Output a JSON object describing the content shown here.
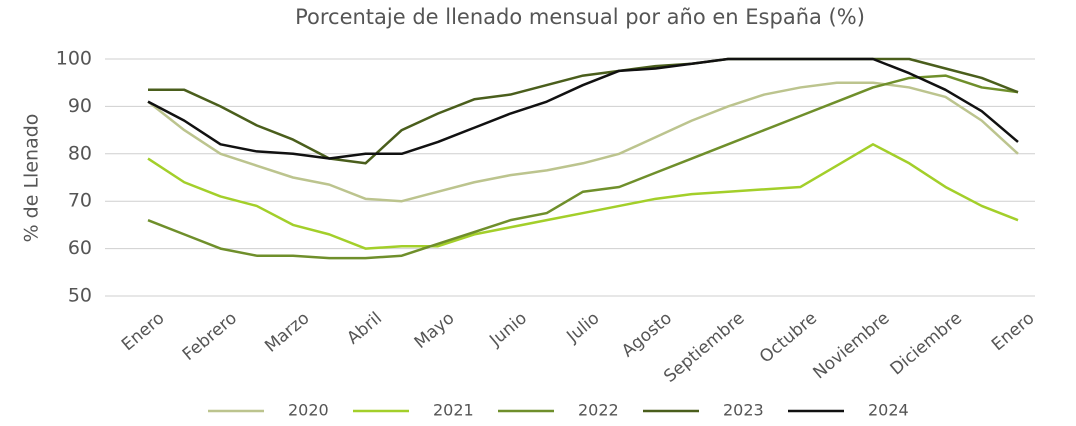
{
  "chart_data": {
    "type": "line",
    "title": "Porcentaje de llenado mensual por año en España (%)",
    "y_label": "% de Llenado",
    "categories": [
      "Enero",
      null,
      "Febrero",
      null,
      "Marzo",
      null,
      "Abril",
      null,
      "Mayo",
      null,
      "Junio",
      null,
      "Julio",
      null,
      "Agosto",
      null,
      "Septiembre",
      null,
      "Octubre",
      null,
      "Noviembre",
      null,
      "Diciembre",
      null,
      "Enero"
    ],
    "ylim": [
      50,
      100
    ],
    "yticks": [
      50,
      60,
      70,
      80,
      90,
      100
    ],
    "grid": true,
    "legend": "bottom",
    "series": [
      {
        "name": "2020",
        "color": "#bcc48e",
        "values": [
          91,
          85,
          80,
          77.5,
          75,
          73.5,
          70.5,
          70,
          72,
          74,
          75.5,
          76.5,
          78,
          80,
          83.5,
          87,
          90,
          92.5,
          94,
          95,
          95,
          94,
          92,
          87,
          80
        ]
      },
      {
        "name": "2021",
        "color": "#a3cf2a",
        "values": [
          79,
          74,
          71,
          69,
          65,
          63,
          60,
          60.5,
          60.5,
          63,
          64.5,
          66,
          67.5,
          69,
          70.5,
          71.5,
          72,
          72.5,
          73,
          77.5,
          82,
          78,
          73,
          69,
          66
        ]
      },
      {
        "name": "2022",
        "color": "#6f8f2b",
        "values": [
          66,
          63,
          60,
          58.5,
          58.5,
          58,
          58,
          58.5,
          61,
          63.5,
          66,
          67.5,
          72,
          73,
          76,
          79,
          82,
          85,
          88,
          91,
          94,
          96,
          96.5,
          94,
          93
        ]
      },
      {
        "name": "2023",
        "color": "#4a5e1c",
        "values": [
          93.5,
          93.5,
          90,
          86,
          83,
          79,
          78,
          85,
          88.5,
          91.5,
          92.5,
          94.5,
          96.5,
          97.5,
          98.5,
          99,
          100,
          100,
          100,
          100,
          100,
          100,
          98,
          96,
          93
        ]
      },
      {
        "name": "2024",
        "color": "#111111",
        "values": [
          91,
          87,
          82,
          80.5,
          80,
          79,
          80,
          80,
          82.5,
          85.5,
          88.5,
          91,
          94.5,
          97.5,
          98,
          99,
          100,
          100,
          100,
          100,
          100,
          97,
          93.5,
          89,
          82.5
        ]
      }
    ]
  }
}
